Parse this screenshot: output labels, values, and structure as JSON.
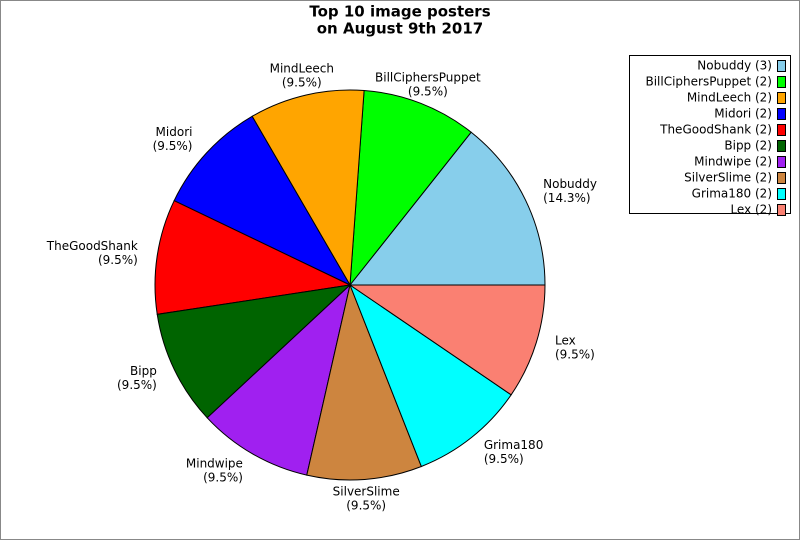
{
  "chart_data": {
    "type": "pie",
    "title": [
      "Top 10 image posters",
      "on August 9th 2017"
    ],
    "categories": [
      "Nobuddy",
      "BillCiphersPuppet",
      "MindLeech",
      "Midori",
      "TheGoodShank",
      "Bipp",
      "Mindwipe",
      "SilverSlime",
      "Grima180",
      "Lex"
    ],
    "values": [
      14.3,
      9.5,
      9.5,
      9.5,
      9.5,
      9.5,
      9.5,
      9.5,
      9.5,
      9.5
    ],
    "value_labels": [
      "(14.3%)",
      "(9.5%)",
      "(9.5%)",
      "(9.5%)",
      "(9.5%)",
      "(9.5%)",
      "(9.5%)",
      "(9.5%)",
      "(9.5%)",
      "(9.5%)"
    ],
    "legend_labels": [
      "Nobuddy (3)",
      "BillCiphersPuppet (2)",
      "MindLeech (2)",
      "Midori (2)",
      "TheGoodShank (2)",
      "Bipp (2)",
      "Mindwipe (2)",
      "SilverSlime (2)",
      "Grima180 (2)",
      "Lex (2)"
    ],
    "colors": [
      "#87ceeb",
      "#00ff00",
      "#ffa500",
      "#0000ff",
      "#ff0000",
      "#006400",
      "#a020f0",
      "#cd853f",
      "#00ffff",
      "#fa8072"
    ],
    "legend_position": "upper right"
  }
}
